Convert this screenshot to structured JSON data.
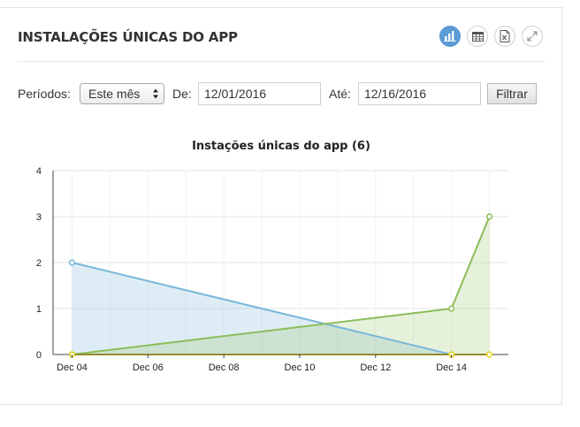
{
  "panel": {
    "title": "INSTALAÇÕES ÚNICAS DO APP",
    "tools": [
      {
        "icon": "bar-chart-icon",
        "active": true
      },
      {
        "icon": "table-icon",
        "active": false
      },
      {
        "icon": "excel-icon",
        "active": false
      },
      {
        "icon": "expand-icon",
        "active": false
      }
    ]
  },
  "filters": {
    "period_label": "Períodos:",
    "period_value": "Este mês",
    "from_label": "De:",
    "from_value": "12/01/2016",
    "to_label": "Até:",
    "to_value": "12/16/2016",
    "submit_label": "Filtrar"
  },
  "colors": {
    "accent": "#5b9bd5",
    "series_blue": "#7ab8d9",
    "series_green": "#8cbd5a",
    "series_yellow": "#e5d21a"
  },
  "chart_data": {
    "type": "area",
    "title": "Instações únicas do app (6)",
    "xlabel": "",
    "ylabel": "",
    "x_ticks": [
      "Dec 04",
      "Dec 06",
      "Dec 08",
      "Dec 10",
      "Dec 12",
      "Dec 14"
    ],
    "x_tick_days": [
      4,
      6,
      8,
      10,
      12,
      14
    ],
    "xlim": [
      3.5,
      15.5
    ],
    "ylim": [
      0,
      4
    ],
    "y_ticks": [
      0,
      1,
      2,
      3,
      4
    ],
    "grid": true,
    "series": [
      {
        "color": "#7ab8d9",
        "fill": "rgba(122,184,217,0.25)",
        "points": [
          [
            4,
            2
          ],
          [
            14,
            0
          ]
        ]
      },
      {
        "color": "#8cbd5a",
        "fill": "rgba(140,189,90,0.22)",
        "points": [
          [
            4,
            0
          ],
          [
            14,
            1
          ],
          [
            15,
            3
          ]
        ]
      },
      {
        "color": "#e5d21a",
        "fill": "rgba(229,210,26,0.2)",
        "points": [
          [
            4,
            0
          ],
          [
            14,
            0
          ],
          [
            15,
            0
          ]
        ]
      }
    ]
  }
}
